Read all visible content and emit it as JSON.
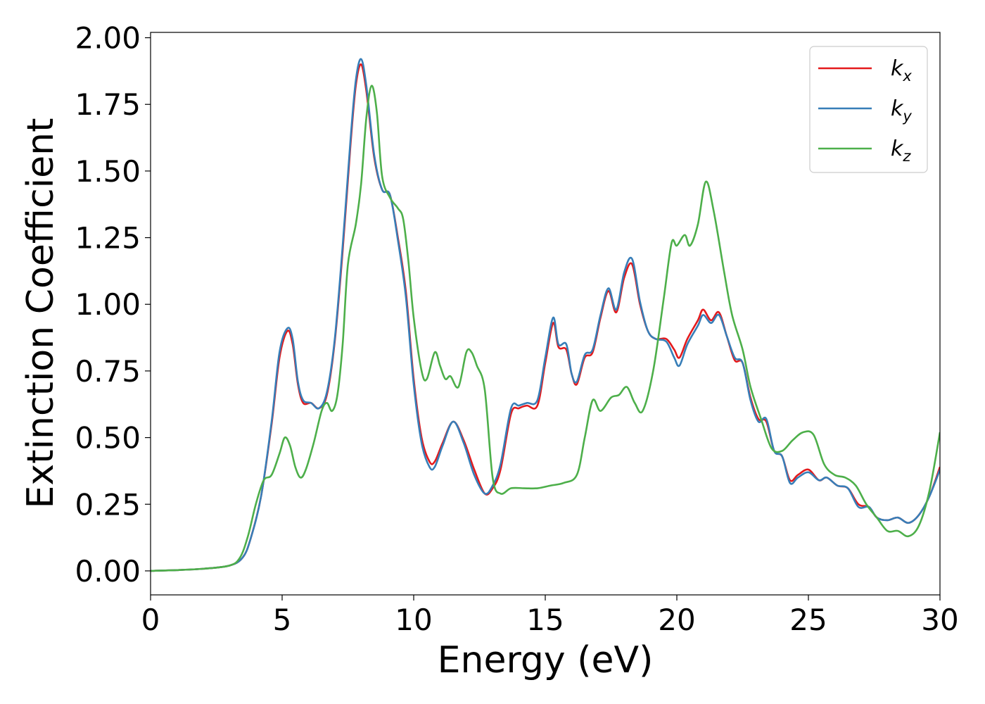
{
  "chart_data": {
    "type": "line",
    "title": "",
    "xlabel": "Energy (eV)",
    "ylabel": "Extinction Coefficient",
    "xlim": [
      0,
      30
    ],
    "ylim": [
      -0.09,
      2.02
    ],
    "xticks": [
      0,
      5,
      10,
      15,
      20,
      25,
      30
    ],
    "xtick_labels": [
      "0",
      "5",
      "10",
      "15",
      "20",
      "25",
      "30"
    ],
    "yticks": [
      0,
      0.25,
      0.5,
      0.75,
      1.0,
      1.25,
      1.5,
      1.75,
      2.0
    ],
    "ytick_labels": [
      "0.00",
      "0.25",
      "0.50",
      "0.75",
      "1.00",
      "1.25",
      "1.50",
      "1.75",
      "2.00"
    ],
    "grid": false,
    "legend_position": "top-right",
    "series": [
      {
        "name": "k",
        "subscript": "x",
        "color": "#e41a1c",
        "points": [
          [
            0,
            0
          ],
          [
            1,
            0.003
          ],
          [
            2,
            0.008
          ],
          [
            3,
            0.02
          ],
          [
            3.5,
            0.05
          ],
          [
            3.8,
            0.12
          ],
          [
            4.2,
            0.28
          ],
          [
            4.6,
            0.55
          ],
          [
            4.9,
            0.8
          ],
          [
            5.2,
            0.9
          ],
          [
            5.4,
            0.85
          ],
          [
            5.6,
            0.7
          ],
          [
            5.8,
            0.63
          ],
          [
            6.1,
            0.63
          ],
          [
            6.4,
            0.61
          ],
          [
            6.7,
            0.66
          ],
          [
            7.0,
            0.86
          ],
          [
            7.3,
            1.2
          ],
          [
            7.6,
            1.6
          ],
          [
            7.8,
            1.82
          ],
          [
            8.0,
            1.9
          ],
          [
            8.2,
            1.8
          ],
          [
            8.5,
            1.55
          ],
          [
            8.8,
            1.43
          ],
          [
            9.1,
            1.41
          ],
          [
            9.4,
            1.25
          ],
          [
            9.7,
            1.05
          ],
          [
            10.0,
            0.72
          ],
          [
            10.3,
            0.5
          ],
          [
            10.6,
            0.41
          ],
          [
            10.8,
            0.41
          ],
          [
            11.1,
            0.48
          ],
          [
            11.5,
            0.56
          ],
          [
            11.9,
            0.49
          ],
          [
            12.3,
            0.38
          ],
          [
            12.7,
            0.29
          ],
          [
            13.0,
            0.31
          ],
          [
            13.3,
            0.38
          ],
          [
            13.7,
            0.59
          ],
          [
            14.0,
            0.61
          ],
          [
            14.3,
            0.62
          ],
          [
            14.7,
            0.62
          ],
          [
            15.0,
            0.78
          ],
          [
            15.3,
            0.93
          ],
          [
            15.5,
            0.84
          ],
          [
            15.8,
            0.83
          ],
          [
            16.0,
            0.74
          ],
          [
            16.2,
            0.7
          ],
          [
            16.5,
            0.8
          ],
          [
            16.8,
            0.82
          ],
          [
            17.1,
            0.95
          ],
          [
            17.4,
            1.05
          ],
          [
            17.7,
            0.97
          ],
          [
            18.0,
            1.1
          ],
          [
            18.3,
            1.15
          ],
          [
            18.6,
            1.0
          ],
          [
            18.9,
            0.9
          ],
          [
            19.2,
            0.87
          ],
          [
            19.6,
            0.87
          ],
          [
            19.9,
            0.83
          ],
          [
            20.1,
            0.8
          ],
          [
            20.4,
            0.87
          ],
          [
            20.8,
            0.94
          ],
          [
            21.0,
            0.98
          ],
          [
            21.3,
            0.94
          ],
          [
            21.6,
            0.97
          ],
          [
            21.9,
            0.88
          ],
          [
            22.2,
            0.79
          ],
          [
            22.5,
            0.78
          ],
          [
            22.8,
            0.65
          ],
          [
            23.1,
            0.57
          ],
          [
            23.4,
            0.56
          ],
          [
            23.7,
            0.45
          ],
          [
            24.0,
            0.43
          ],
          [
            24.3,
            0.34
          ],
          [
            24.6,
            0.36
          ],
          [
            25.0,
            0.38
          ],
          [
            25.4,
            0.34
          ],
          [
            25.7,
            0.35
          ],
          [
            26.1,
            0.32
          ],
          [
            26.5,
            0.31
          ],
          [
            26.9,
            0.25
          ],
          [
            27.3,
            0.24
          ],
          [
            27.6,
            0.2
          ],
          [
            28.0,
            0.19
          ],
          [
            28.4,
            0.2
          ],
          [
            28.8,
            0.18
          ],
          [
            29.2,
            0.21
          ],
          [
            29.6,
            0.28
          ],
          [
            30,
            0.39
          ]
        ]
      },
      {
        "name": "k",
        "subscript": "y",
        "color": "#377eb8",
        "points": [
          [
            0,
            0
          ],
          [
            1,
            0.003
          ],
          [
            2,
            0.008
          ],
          [
            3,
            0.02
          ],
          [
            3.5,
            0.05
          ],
          [
            3.8,
            0.12
          ],
          [
            4.2,
            0.28
          ],
          [
            4.6,
            0.56
          ],
          [
            4.9,
            0.82
          ],
          [
            5.2,
            0.91
          ],
          [
            5.4,
            0.87
          ],
          [
            5.6,
            0.71
          ],
          [
            5.8,
            0.64
          ],
          [
            6.1,
            0.63
          ],
          [
            6.4,
            0.61
          ],
          [
            6.7,
            0.67
          ],
          [
            7.0,
            0.87
          ],
          [
            7.3,
            1.22
          ],
          [
            7.6,
            1.62
          ],
          [
            7.8,
            1.84
          ],
          [
            8.0,
            1.92
          ],
          [
            8.2,
            1.82
          ],
          [
            8.5,
            1.56
          ],
          [
            8.8,
            1.43
          ],
          [
            9.1,
            1.41
          ],
          [
            9.4,
            1.24
          ],
          [
            9.7,
            1.03
          ],
          [
            10.0,
            0.7
          ],
          [
            10.3,
            0.48
          ],
          [
            10.6,
            0.39
          ],
          [
            10.8,
            0.39
          ],
          [
            11.1,
            0.47
          ],
          [
            11.5,
            0.56
          ],
          [
            11.9,
            0.48
          ],
          [
            12.3,
            0.36
          ],
          [
            12.7,
            0.29
          ],
          [
            13.0,
            0.32
          ],
          [
            13.3,
            0.4
          ],
          [
            13.7,
            0.61
          ],
          [
            14.0,
            0.62
          ],
          [
            14.3,
            0.63
          ],
          [
            14.7,
            0.64
          ],
          [
            15.0,
            0.8
          ],
          [
            15.3,
            0.95
          ],
          [
            15.5,
            0.85
          ],
          [
            15.8,
            0.85
          ],
          [
            16.0,
            0.74
          ],
          [
            16.2,
            0.71
          ],
          [
            16.5,
            0.81
          ],
          [
            16.8,
            0.83
          ],
          [
            17.1,
            0.96
          ],
          [
            17.4,
            1.06
          ],
          [
            17.7,
            0.98
          ],
          [
            18.0,
            1.12
          ],
          [
            18.3,
            1.17
          ],
          [
            18.6,
            1.01
          ],
          [
            18.9,
            0.9
          ],
          [
            19.2,
            0.87
          ],
          [
            19.6,
            0.86
          ],
          [
            19.9,
            0.8
          ],
          [
            20.1,
            0.77
          ],
          [
            20.4,
            0.85
          ],
          [
            20.8,
            0.92
          ],
          [
            21.0,
            0.96
          ],
          [
            21.3,
            0.93
          ],
          [
            21.6,
            0.96
          ],
          [
            21.9,
            0.88
          ],
          [
            22.2,
            0.8
          ],
          [
            22.5,
            0.78
          ],
          [
            22.8,
            0.64
          ],
          [
            23.1,
            0.56
          ],
          [
            23.4,
            0.57
          ],
          [
            23.7,
            0.45
          ],
          [
            24.0,
            0.43
          ],
          [
            24.3,
            0.33
          ],
          [
            24.6,
            0.35
          ],
          [
            25.0,
            0.37
          ],
          [
            25.4,
            0.34
          ],
          [
            25.7,
            0.35
          ],
          [
            26.1,
            0.32
          ],
          [
            26.5,
            0.31
          ],
          [
            26.9,
            0.24
          ],
          [
            27.3,
            0.24
          ],
          [
            27.6,
            0.2
          ],
          [
            28.0,
            0.19
          ],
          [
            28.4,
            0.2
          ],
          [
            28.8,
            0.18
          ],
          [
            29.2,
            0.21
          ],
          [
            29.6,
            0.28
          ],
          [
            30,
            0.38
          ]
        ]
      },
      {
        "name": "k",
        "subscript": "z",
        "color": "#4daf4a",
        "points": [
          [
            0,
            0
          ],
          [
            1,
            0.003
          ],
          [
            2,
            0.008
          ],
          [
            3,
            0.02
          ],
          [
            3.4,
            0.05
          ],
          [
            3.7,
            0.13
          ],
          [
            4.0,
            0.25
          ],
          [
            4.3,
            0.34
          ],
          [
            4.6,
            0.36
          ],
          [
            4.9,
            0.44
          ],
          [
            5.1,
            0.5
          ],
          [
            5.3,
            0.47
          ],
          [
            5.5,
            0.39
          ],
          [
            5.7,
            0.35
          ],
          [
            5.9,
            0.38
          ],
          [
            6.2,
            0.48
          ],
          [
            6.5,
            0.6
          ],
          [
            6.7,
            0.63
          ],
          [
            6.9,
            0.6
          ],
          [
            7.1,
            0.66
          ],
          [
            7.3,
            0.85
          ],
          [
            7.5,
            1.15
          ],
          [
            7.8,
            1.3
          ],
          [
            8.0,
            1.45
          ],
          [
            8.2,
            1.7
          ],
          [
            8.4,
            1.82
          ],
          [
            8.6,
            1.72
          ],
          [
            8.8,
            1.48
          ],
          [
            9.1,
            1.4
          ],
          [
            9.4,
            1.36
          ],
          [
            9.6,
            1.32
          ],
          [
            9.8,
            1.16
          ],
          [
            10.0,
            0.95
          ],
          [
            10.3,
            0.75
          ],
          [
            10.5,
            0.72
          ],
          [
            10.8,
            0.82
          ],
          [
            11.0,
            0.77
          ],
          [
            11.2,
            0.72
          ],
          [
            11.4,
            0.73
          ],
          [
            11.7,
            0.69
          ],
          [
            12.0,
            0.82
          ],
          [
            12.2,
            0.82
          ],
          [
            12.4,
            0.77
          ],
          [
            12.7,
            0.68
          ],
          [
            13.0,
            0.35
          ],
          [
            13.3,
            0.29
          ],
          [
            13.7,
            0.31
          ],
          [
            14.2,
            0.31
          ],
          [
            14.7,
            0.31
          ],
          [
            15.2,
            0.32
          ],
          [
            15.7,
            0.33
          ],
          [
            16.2,
            0.36
          ],
          [
            16.5,
            0.5
          ],
          [
            16.8,
            0.64
          ],
          [
            17.1,
            0.6
          ],
          [
            17.5,
            0.65
          ],
          [
            17.8,
            0.66
          ],
          [
            18.1,
            0.69
          ],
          [
            18.4,
            0.63
          ],
          [
            18.7,
            0.6
          ],
          [
            19.1,
            0.75
          ],
          [
            19.5,
            1.02
          ],
          [
            19.8,
            1.23
          ],
          [
            20.0,
            1.22
          ],
          [
            20.3,
            1.26
          ],
          [
            20.5,
            1.22
          ],
          [
            20.8,
            1.3
          ],
          [
            21.1,
            1.46
          ],
          [
            21.4,
            1.35
          ],
          [
            21.8,
            1.12
          ],
          [
            22.1,
            0.96
          ],
          [
            22.5,
            0.83
          ],
          [
            22.8,
            0.69
          ],
          [
            23.2,
            0.57
          ],
          [
            23.6,
            0.46
          ],
          [
            24.0,
            0.45
          ],
          [
            24.4,
            0.49
          ],
          [
            24.8,
            0.52
          ],
          [
            25.2,
            0.51
          ],
          [
            25.6,
            0.4
          ],
          [
            26.0,
            0.36
          ],
          [
            26.4,
            0.35
          ],
          [
            26.8,
            0.32
          ],
          [
            27.2,
            0.25
          ],
          [
            27.6,
            0.2
          ],
          [
            28.0,
            0.15
          ],
          [
            28.4,
            0.15
          ],
          [
            28.8,
            0.13
          ],
          [
            29.2,
            0.17
          ],
          [
            29.6,
            0.3
          ],
          [
            30,
            0.52
          ]
        ]
      }
    ]
  }
}
